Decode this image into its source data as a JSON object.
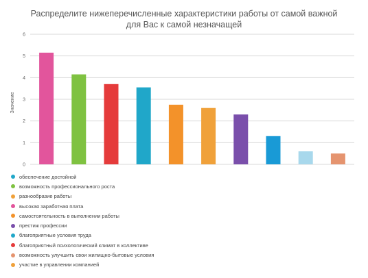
{
  "chart_data": {
    "type": "bar",
    "title": "Распределите нижеперечисленные характеристики работы от самой важной",
    "subtitle": "для Вас к самой незначащей",
    "ylabel": "Значение",
    "ylim": [
      0,
      6
    ],
    "yticks": [
      0,
      1,
      2,
      3,
      4,
      5,
      6
    ],
    "grid": true,
    "legend": "bottom-left",
    "categories": [
      "обеспечение достойной",
      "возможность профессионального роста",
      "разнообразие работы",
      "высокая заработная плата",
      "самостоятельность в выполнении работы",
      "престиж профессии",
      "благоприятные условия труда",
      "благоприятный психологический климат в коллективе",
      "возможность улучшить свои жилищно-бытовые условия",
      "участие в управлении компанией"
    ],
    "values": [
      5.15,
      4.15,
      3.7,
      3.55,
      2.75,
      2.6,
      2.3,
      1.3,
      0.6,
      0.5
    ],
    "colors": [
      "#e2559c",
      "#7fc241",
      "#e53b3b",
      "#20a7c9",
      "#f3922a",
      "#f0a13a",
      "#7a4fab",
      "#199ad6",
      "#a8d8ec",
      "#e5946f"
    ],
    "legend_colors": [
      "#20a7c9",
      "#7fc241",
      "#f0a13a",
      "#e2559c",
      "#f3922a",
      "#7a4fab",
      "#20a7c9",
      "#e53b3b",
      "#e5946f",
      "#f0a13a"
    ]
  }
}
